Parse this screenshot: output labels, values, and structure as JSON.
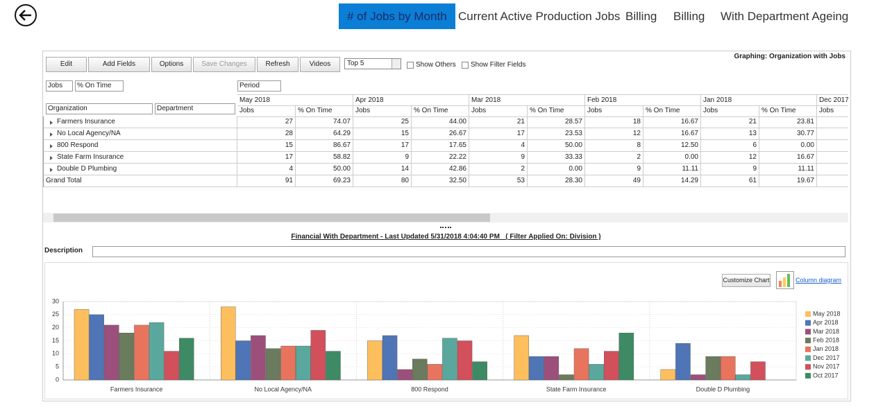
{
  "nav": {
    "tabs": [
      "# of Jobs by Month",
      "Current Active Production Jobs",
      "Billing",
      "Billing",
      "With Department Ageing"
    ],
    "active": 0
  },
  "toolbar": {
    "buttons": [
      "Edit",
      "Add Fields",
      "Options",
      "Save Changes",
      "Refresh",
      "Videos"
    ],
    "disabled": [
      3
    ],
    "top_select": "Top 5",
    "checkboxes": [
      "Show Others",
      "Show Filter Fields"
    ],
    "graphing_label": "Graphing: Organization with Jobs"
  },
  "pivot": {
    "data_fields": [
      "Jobs",
      "% On Time"
    ],
    "column_field": "Period",
    "row_fields": [
      "Organization",
      "Department"
    ],
    "periods": [
      "May 2018",
      "Apr 2018",
      "Mar 2018",
      "Feb 2018",
      "Jan 2018",
      "Dec 2017"
    ],
    "subheaders": [
      "Jobs",
      "% On Time"
    ],
    "rows": [
      {
        "label": "Farmers Insurance",
        "cells": [
          "27",
          "74.07",
          "25",
          "44.00",
          "21",
          "28.57",
          "18",
          "16.67",
          "21",
          "23.81"
        ]
      },
      {
        "label": "No Local Agency/NA",
        "cells": [
          "28",
          "64.29",
          "15",
          "26.67",
          "17",
          "23.53",
          "12",
          "16.67",
          "13",
          "30.77"
        ]
      },
      {
        "label": "800 Respond",
        "cells": [
          "15",
          "86.67",
          "17",
          "17.65",
          "4",
          "50.00",
          "8",
          "12.50",
          "6",
          "0.00"
        ]
      },
      {
        "label": "State Farm Insurance",
        "cells": [
          "17",
          "58.82",
          "9",
          "22.22",
          "9",
          "33.33",
          "2",
          "0.00",
          "12",
          "16.67"
        ]
      },
      {
        "label": "Double D Plumbing",
        "cells": [
          "4",
          "50.00",
          "14",
          "42.86",
          "2",
          "0.00",
          "9",
          "11.11",
          "9",
          "11.11"
        ]
      }
    ],
    "total": {
      "label": "Grand Total",
      "cells": [
        "91",
        "69.23",
        "80",
        "32.50",
        "53",
        "28.30",
        "49",
        "14.29",
        "61",
        "19.67"
      ]
    }
  },
  "report_title": "Financial With Department - Last Updated 5/31/2018 4:04:40 PM   ( Filter Applied On: Division )",
  "description_label": "Description",
  "customize_button": "Customize Chart",
  "chart_link": "Column diagram",
  "chart_data": {
    "type": "bar",
    "categories": [
      "Farmers Insurance",
      "No Local Agency/NA",
      "800 Respond",
      "State Farm Insurance",
      "Double D Plumbing"
    ],
    "series": [
      {
        "name": "May 2018",
        "color": "#fdbf5e",
        "values": [
          27,
          28,
          15,
          17,
          4
        ]
      },
      {
        "name": "Apr 2018",
        "color": "#4f75b6",
        "values": [
          25,
          15,
          17,
          9,
          14
        ]
      },
      {
        "name": "Mar 2018",
        "color": "#9c4f7b",
        "values": [
          21,
          17,
          4,
          9,
          2
        ]
      },
      {
        "name": "Feb 2018",
        "color": "#6b7b5d",
        "values": [
          18,
          12,
          8,
          2,
          9
        ]
      },
      {
        "name": "Jan 2018",
        "color": "#e8745e",
        "values": [
          21,
          13,
          6,
          12,
          9
        ]
      },
      {
        "name": "Dec 2017",
        "color": "#5aa89d",
        "values": [
          22,
          13,
          16,
          6,
          2
        ]
      },
      {
        "name": "Nov 2017",
        "color": "#d2505b",
        "values": [
          11,
          19,
          15,
          11,
          7
        ]
      },
      {
        "name": "Oct 2017",
        "color": "#3e8a65",
        "values": [
          16,
          11,
          7,
          18,
          0
        ]
      }
    ],
    "ylim": [
      0,
      30
    ],
    "yticks": [
      0,
      5,
      10,
      15,
      20,
      25,
      30
    ],
    "grid": true,
    "legend": "right"
  }
}
